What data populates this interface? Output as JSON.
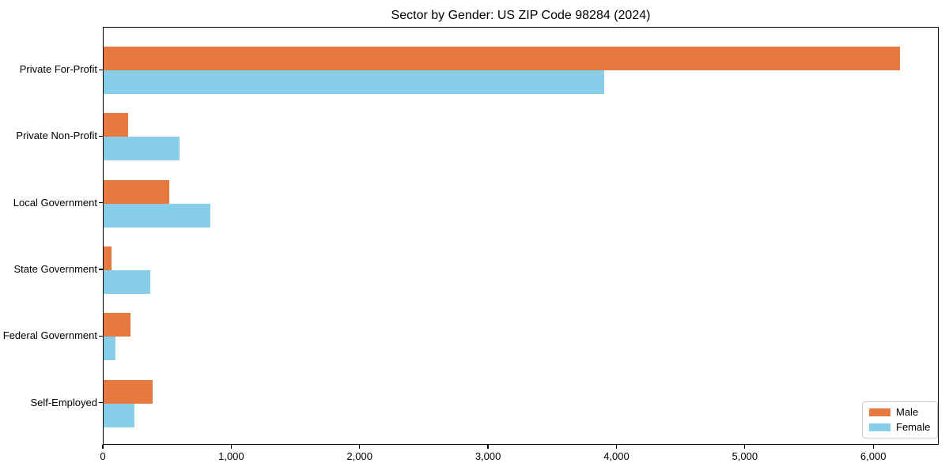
{
  "chart_data": {
    "type": "bar",
    "orientation": "horizontal",
    "title": "Sector by Gender: US ZIP Code 98284 (2024)",
    "categories": [
      "Private For-Profit",
      "Private Non-Profit",
      "Local Government",
      "State Government",
      "Federal Government",
      "Self-Employed"
    ],
    "series": [
      {
        "name": "Male",
        "color": "#e8793e",
        "values": [
          6200,
          190,
          510,
          60,
          210,
          380
        ]
      },
      {
        "name": "Female",
        "color": "#87ceeb",
        "values": [
          3900,
          590,
          830,
          360,
          90,
          240
        ]
      }
    ],
    "xlabel": "",
    "ylabel": "",
    "xlim": [
      0,
      6510
    ],
    "x_ticks": [
      {
        "value": 0,
        "label": "0"
      },
      {
        "value": 1000,
        "label": "1,000"
      },
      {
        "value": 2000,
        "label": "2,000"
      },
      {
        "value": 3000,
        "label": "3,000"
      },
      {
        "value": 4000,
        "label": "4,000"
      },
      {
        "value": 5000,
        "label": "5,000"
      },
      {
        "value": 6000,
        "label": "6,000"
      }
    ],
    "grid": false,
    "legend": {
      "position": "lower-right",
      "entries": [
        "Male",
        "Female"
      ]
    },
    "colors": {
      "axis": "#000000",
      "text": "#000000",
      "background": "#ffffff",
      "legend_border": "#cccccc"
    }
  }
}
